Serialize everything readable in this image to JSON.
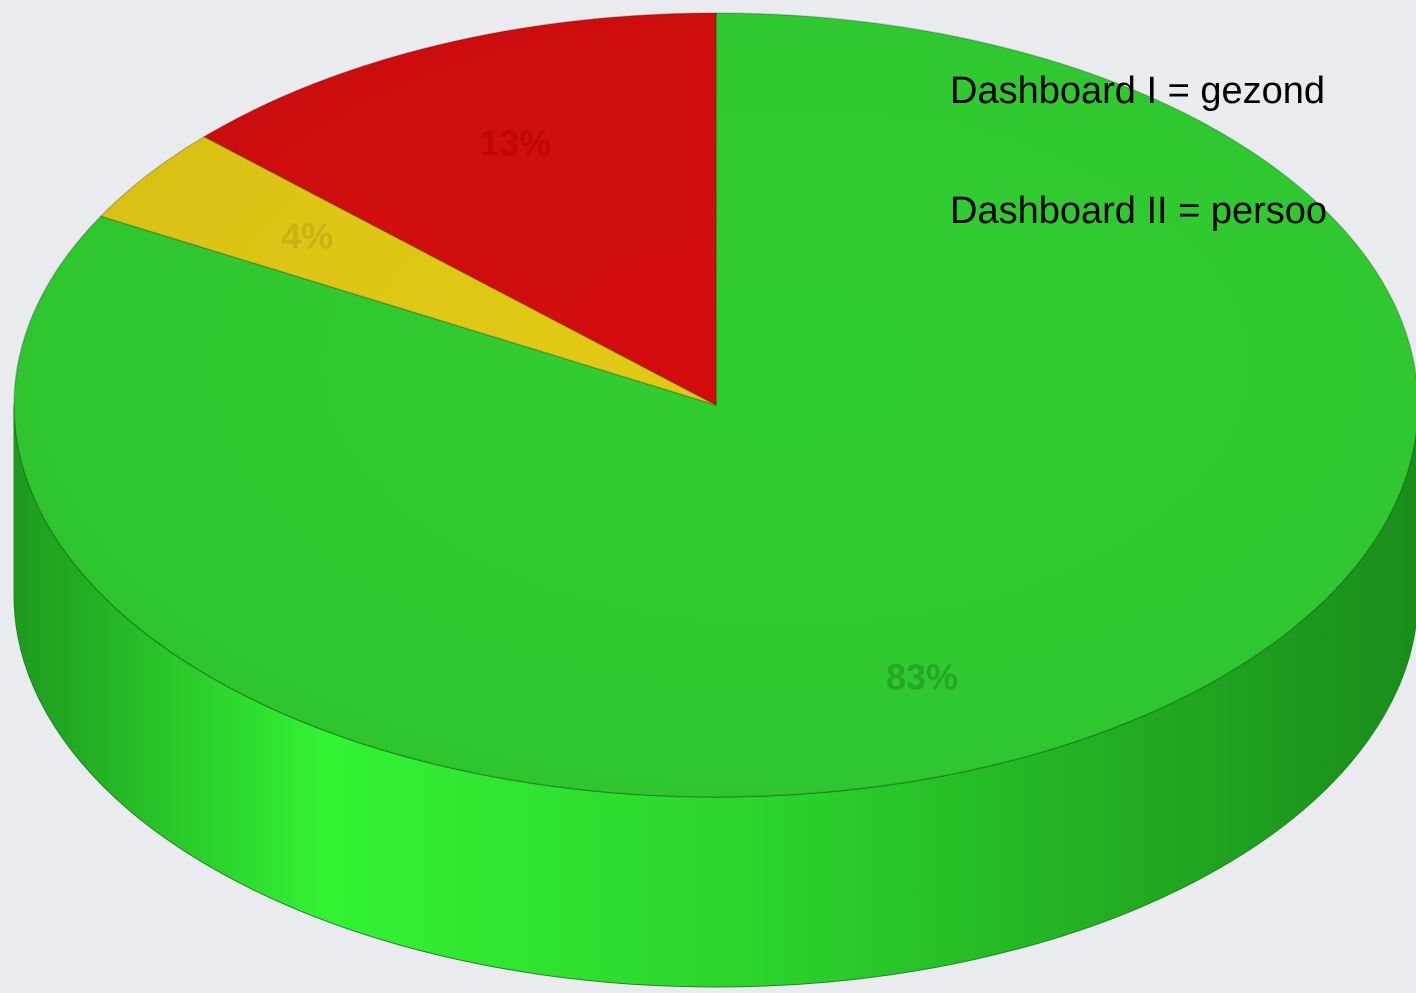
{
  "chart_data": {
    "type": "pie",
    "style": "3d",
    "slices": [
      {
        "value": 83,
        "label": "83%",
        "color": "#2ecc2e",
        "label_color": "#27a727"
      },
      {
        "value": 4,
        "label": "4%",
        "color": "#e0c812",
        "label_color": "#c9b214"
      },
      {
        "value": 13,
        "label": "13%",
        "color": "#d20a0a",
        "label_color": "#c20606"
      }
    ]
  },
  "notes": [
    "Dashboard I = gezond",
    "Dashboard II = persoo"
  ]
}
